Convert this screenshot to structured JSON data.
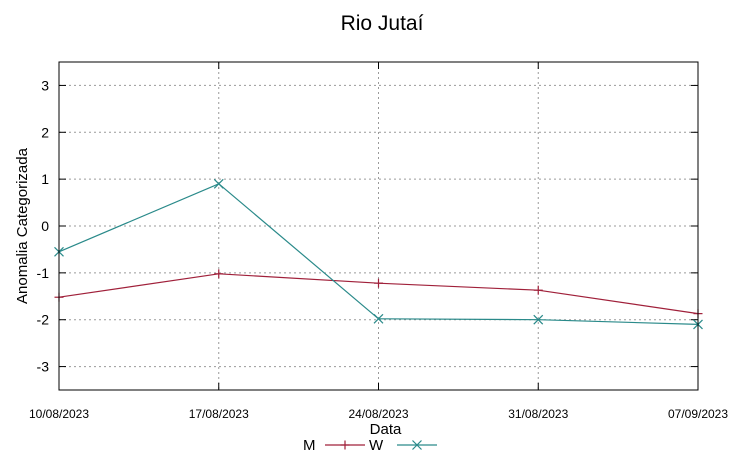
{
  "chart_data": {
    "type": "line",
    "title": "Rio Jutaí",
    "xlabel": "Data",
    "ylabel": "Anomalia Categorizada",
    "x": [
      "10/08/2023",
      "17/08/2023",
      "24/08/2023",
      "31/08/2023",
      "07/09/2023"
    ],
    "ylim": [
      -3.5,
      3.5
    ],
    "yticks": [
      3,
      2,
      1,
      0,
      -1,
      -2,
      -3
    ],
    "grid": true,
    "legend": "bottom",
    "series": [
      {
        "name": "M",
        "color": "#a0203a",
        "marker": "plus",
        "values": [
          -1.52,
          -1.02,
          -1.22,
          -1.37,
          -1.87
        ]
      },
      {
        "name": "W",
        "color": "#2a8a8a",
        "marker": "cross",
        "values": [
          -0.55,
          0.9,
          -1.98,
          -2.0,
          -2.1
        ]
      }
    ]
  }
}
